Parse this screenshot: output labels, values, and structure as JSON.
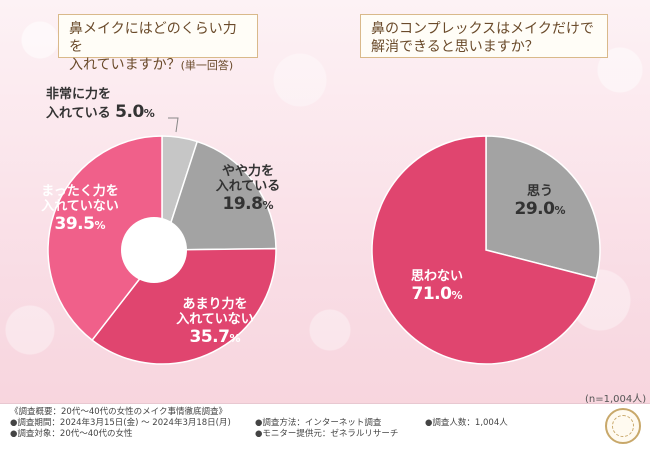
{
  "chart_data": [
    {
      "type": "pie",
      "title_line1": "鼻メイクにはどのくらい力を",
      "title_line2": "入れていますか？",
      "title_note": "(単一回答)",
      "unit": "%",
      "slices": [
        {
          "label_line1": "非常に力を",
          "label_line2": "入れている",
          "value": 5.0,
          "value_text": "5.0",
          "color": "#c6c6c6"
        },
        {
          "label_line1": "やや力を",
          "label_line2": "入れている",
          "value": 19.8,
          "value_text": "19.8",
          "color": "#a3a3a3"
        },
        {
          "label_line1": "あまり力を",
          "label_line2": "入れていない",
          "value": 35.7,
          "value_text": "35.7",
          "color": "#e0456f"
        },
        {
          "label_line1": "まったく力を",
          "label_line2": "入れていない",
          "value": 39.5,
          "value_text": "39.5",
          "color": "#f0608a"
        }
      ]
    },
    {
      "type": "pie",
      "title_line1": "鼻のコンプレックスはメイクだけで",
      "title_line2": "解消できると思いますか？",
      "unit": "%",
      "n_note": "(n=1,004人)",
      "slices": [
        {
          "label_line1": "思う",
          "value": 29.0,
          "value_text": "29.0",
          "color": "#a3a3a3"
        },
        {
          "label_line1": "思わない",
          "value": 71.0,
          "value_text": "71.0",
          "color": "#e0456f"
        }
      ]
    }
  ],
  "footer": {
    "overview": "《調査概要：20代～40代の女性のメイク事情徹底調査》",
    "period": "●調査期間：2024年3月15日(金) ～ 2024年3月18日(月)",
    "target": "●調査対象：20代～40代の女性",
    "method": "●調査方法：インターネット調査",
    "provider": "●モニター提供元：ゼネラルリサーチ",
    "count": "●調査人数：1,004人"
  }
}
